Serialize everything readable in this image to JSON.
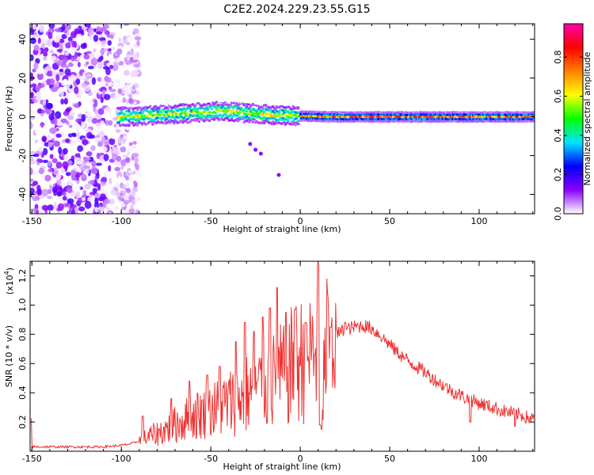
{
  "title": "C2E2.2024.229.23.55.G15",
  "chart_data": [
    {
      "type": "heatmap",
      "xlabel": "Height of straight line (km)",
      "ylabel": "Frequency (Hz)",
      "xlim": [
        -151,
        131
      ],
      "ylim": [
        -50,
        48
      ],
      "x_ticks": [
        "-150",
        "-100",
        "-50",
        "0",
        "50",
        "100"
      ],
      "y_ticks": [
        "-40",
        "-20",
        "0",
        "20",
        "40"
      ],
      "x_tick_values": [
        -150,
        -100,
        -50,
        0,
        50,
        100
      ],
      "y_tick_values": [
        -40,
        -20,
        0,
        20,
        40
      ],
      "colorbar": {
        "label": "Normalized spectral amplitude",
        "range": [
          0,
          0.97
        ],
        "ticks": [
          "0.0",
          "0.2",
          "0.4",
          "0.6",
          "0.8"
        ],
        "tick_values": [
          0,
          0.2,
          0.4,
          0.6,
          0.8
        ],
        "colormap": [
          "#ffffff",
          "#8a00ff",
          "#0000ff",
          "#00e5ff",
          "#00ff00",
          "#ffff00",
          "#ff8000",
          "#ff0000",
          "#ff00aa"
        ]
      },
      "description_regions": [
        {
          "x_range": [
            -151,
            -98
          ],
          "y_range": [
            -50,
            48
          ],
          "level": 0.12,
          "pattern": "noise"
        },
        {
          "x_range": [
            -102,
            131
          ],
          "y_range": [
            -6,
            6
          ],
          "level": 0.5,
          "pattern": "band"
        }
      ],
      "center_track": [
        {
          "x": -100,
          "y": 0
        },
        {
          "x": -80,
          "y": 1
        },
        {
          "x": -60,
          "y": 2
        },
        {
          "x": -45,
          "y": 3
        },
        {
          "x": -30,
          "y": 2
        },
        {
          "x": -15,
          "y": 1
        },
        {
          "x": 0,
          "y": 0.5
        },
        {
          "x": 20,
          "y": 0
        },
        {
          "x": 60,
          "y": 0
        },
        {
          "x": 100,
          "y": 0
        },
        {
          "x": 130,
          "y": 0
        }
      ],
      "extra_points": [
        {
          "x": -28,
          "y": -14
        },
        {
          "x": -25,
          "y": -17
        },
        {
          "x": -22,
          "y": -19
        },
        {
          "x": -12,
          "y": -30
        }
      ]
    },
    {
      "type": "line",
      "xlabel": "Height of straight line (km)",
      "ylabel": "SNR (10 * v/v)",
      "y_scale_label": "(x10",
      "y_scale_exp": "4",
      "y_scale_close": ")",
      "xlim": [
        -151,
        131
      ],
      "ylim": [
        0,
        1.3
      ],
      "x_ticks": [
        "-150",
        "-100",
        "-50",
        "0",
        "50",
        "100"
      ],
      "y_ticks": [
        "0.2",
        "0.4",
        "0.6",
        "0.8",
        "1.0",
        "1.2"
      ],
      "x_tick_values": [
        -150,
        -100,
        -50,
        0,
        50,
        100
      ],
      "y_tick_values": [
        0.2,
        0.4,
        0.6,
        0.8,
        1.0,
        1.2
      ],
      "series": [
        {
          "color": "#ee3333",
          "x": [
            -150,
            -140,
            -130,
            -120,
            -110,
            -100,
            -95,
            -90,
            -85,
            -80,
            -75,
            -70,
            -65,
            -60,
            -55,
            -50,
            -45,
            -40,
            -35,
            -30,
            -25,
            -20,
            -15,
            -10,
            -5,
            0,
            5,
            10,
            12,
            15,
            20,
            25,
            30,
            35,
            40,
            45,
            50,
            55,
            60,
            65,
            70,
            75,
            80,
            85,
            90,
            95,
            100,
            105,
            110,
            115,
            120,
            125,
            130
          ],
          "values": [
            0.03,
            0.03,
            0.03,
            0.03,
            0.03,
            0.04,
            0.05,
            0.07,
            0.1,
            0.12,
            0.15,
            0.18,
            0.21,
            0.24,
            0.26,
            0.28,
            0.3,
            0.33,
            0.36,
            0.39,
            0.42,
            0.45,
            0.48,
            0.52,
            0.58,
            0.62,
            0.66,
            0.7,
            0.35,
            0.75,
            0.8,
            0.83,
            0.85,
            0.86,
            0.84,
            0.79,
            0.73,
            0.67,
            0.62,
            0.58,
            0.54,
            0.49,
            0.45,
            0.41,
            0.38,
            0.35,
            0.33,
            0.31,
            0.29,
            0.27,
            0.26,
            0.24,
            0.22
          ],
          "spikes": [
            {
              "x": -88,
              "y": 0.24
            },
            {
              "x": -72,
              "y": 0.36
            },
            {
              "x": -62,
              "y": 0.48
            },
            {
              "x": -52,
              "y": 0.52
            },
            {
              "x": -45,
              "y": 0.58
            },
            {
              "x": -36,
              "y": 0.75
            },
            {
              "x": -31,
              "y": 0.88
            },
            {
              "x": -26,
              "y": 0.82
            },
            {
              "x": -21,
              "y": 0.92
            },
            {
              "x": -17,
              "y": 0.98
            },
            {
              "x": -13,
              "y": 1.12
            },
            {
              "x": -8,
              "y": 0.95
            },
            {
              "x": -3,
              "y": 0.97
            },
            {
              "x": 3,
              "y": 0.88
            },
            {
              "x": 10,
              "y": 1.28
            },
            {
              "x": 12,
              "y": 0.15
            },
            {
              "x": 17,
              "y": 0.85
            },
            {
              "x": 25,
              "y": 0.88
            }
          ],
          "dips": [
            {
              "x": 11,
              "y": 0.18
            },
            {
              "x": 95,
              "y": 0.2
            },
            {
              "x": 120,
              "y": 0.17
            }
          ]
        }
      ]
    }
  ]
}
